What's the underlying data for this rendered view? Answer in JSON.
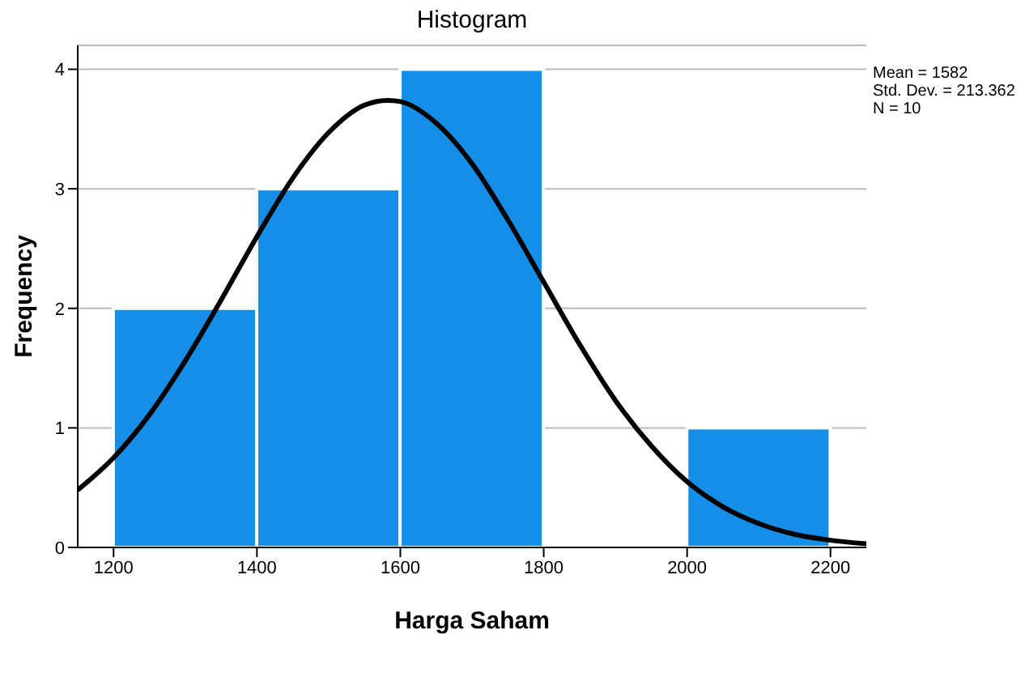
{
  "chart_data": {
    "type": "histogram",
    "title": "Histogram",
    "xlabel": "Harga Saham",
    "ylabel": "Frequency",
    "bins": [
      1200,
      1400,
      1600,
      1800,
      2000,
      2200
    ],
    "values": [
      2,
      3,
      4,
      0,
      1
    ],
    "color": "#148ee6",
    "xlim": [
      1150,
      2250
    ],
    "xticks": [
      1200,
      1400,
      1600,
      1800,
      2000,
      2200
    ],
    "ylim": [
      0,
      4.2
    ],
    "yticks": [
      0,
      1,
      2,
      3,
      4
    ],
    "grid": "y",
    "annotations": [
      "Mean = 1582",
      "Std. Dev. = 213.362",
      "N = 10"
    ],
    "series": [
      {
        "type": "line",
        "color": "#000000",
        "marker": "none",
        "line_style": "solid",
        "x": [
          1150,
          1200,
          1250,
          1300,
          1350,
          1400,
          1450,
          1500,
          1550,
          1582,
          1600,
          1650,
          1700,
          1750,
          1800,
          1850,
          1900,
          1950,
          2000,
          2050,
          2100,
          2150,
          2200,
          2250
        ],
        "values": [
          0.48,
          0.75,
          1.11,
          1.56,
          2.07,
          2.6,
          3.09,
          3.47,
          3.7,
          3.74,
          3.73,
          3.55,
          3.21,
          2.74,
          2.22,
          1.7,
          1.23,
          0.85,
          0.55,
          0.34,
          0.2,
          0.11,
          0.06,
          0.03
        ]
      }
    ]
  }
}
